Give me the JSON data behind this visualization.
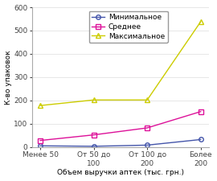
{
  "x_labels": [
    "Менее 50",
    "От 50 до\n100",
    "От 100 до\n200",
    "Более\n200"
  ],
  "series": [
    {
      "label": "Минимальное",
      "color": "#4455aa",
      "marker": "o",
      "values": [
        5,
        3,
        8,
        32
      ]
    },
    {
      "label": "Среднее",
      "color": "#dd1199",
      "marker": "s",
      "values": [
        28,
        52,
        82,
        152
      ]
    },
    {
      "label": "Максимальное",
      "color": "#cccc00",
      "marker": "^",
      "values": [
        178,
        202,
        202,
        538
      ]
    }
  ],
  "ylabel": "К-во упаковок",
  "xlabel": "Объем выручки аптек (тыс. грн.)",
  "ylim": [
    0,
    600
  ],
  "yticks": [
    0,
    100,
    200,
    300,
    400,
    500,
    600
  ],
  "background_color": "#ffffff",
  "legend_fontsize": 6.5,
  "axis_label_fontsize": 6.5,
  "tick_fontsize": 6.5
}
